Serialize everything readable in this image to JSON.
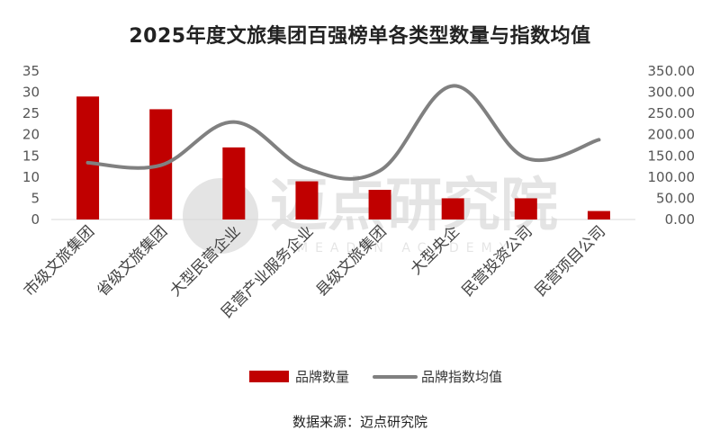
{
  "watermark": {
    "text": "迈点研究院",
    "sub": "MEADIN ACADEMY"
  },
  "source": "数据来源：迈点研究院",
  "chart_data": {
    "type": "bar",
    "title": "2025年度文旅集团百强榜单各类型数量与指数均值",
    "categories": [
      "市级文旅集团",
      "省级文旅集团",
      "大型民营企业",
      "民营产业服务企业",
      "县级文旅集团",
      "大型央企",
      "民营投资公司",
      "民营项目公司"
    ],
    "series": [
      {
        "name": "品牌数量",
        "type": "bar",
        "axis": "left",
        "color": "#C00000",
        "values": [
          29,
          26,
          17,
          9,
          7,
          5,
          5,
          2
        ]
      },
      {
        "name": "品牌指数均值",
        "type": "line",
        "axis": "right",
        "color": "#808080",
        "values": [
          134,
          128,
          230,
          120,
          115,
          315,
          145,
          188
        ]
      }
    ],
    "yleft": {
      "min": 0,
      "max": 35,
      "ticks": [
        "0",
        "5",
        "10",
        "15",
        "20",
        "25",
        "30",
        "35"
      ]
    },
    "yright": {
      "min": 0,
      "max": 350,
      "ticks": [
        "0.00",
        "50.00",
        "100.00",
        "150.00",
        "200.00",
        "250.00",
        "300.00",
        "350.00"
      ]
    },
    "legend": "bottom",
    "grid": false
  }
}
